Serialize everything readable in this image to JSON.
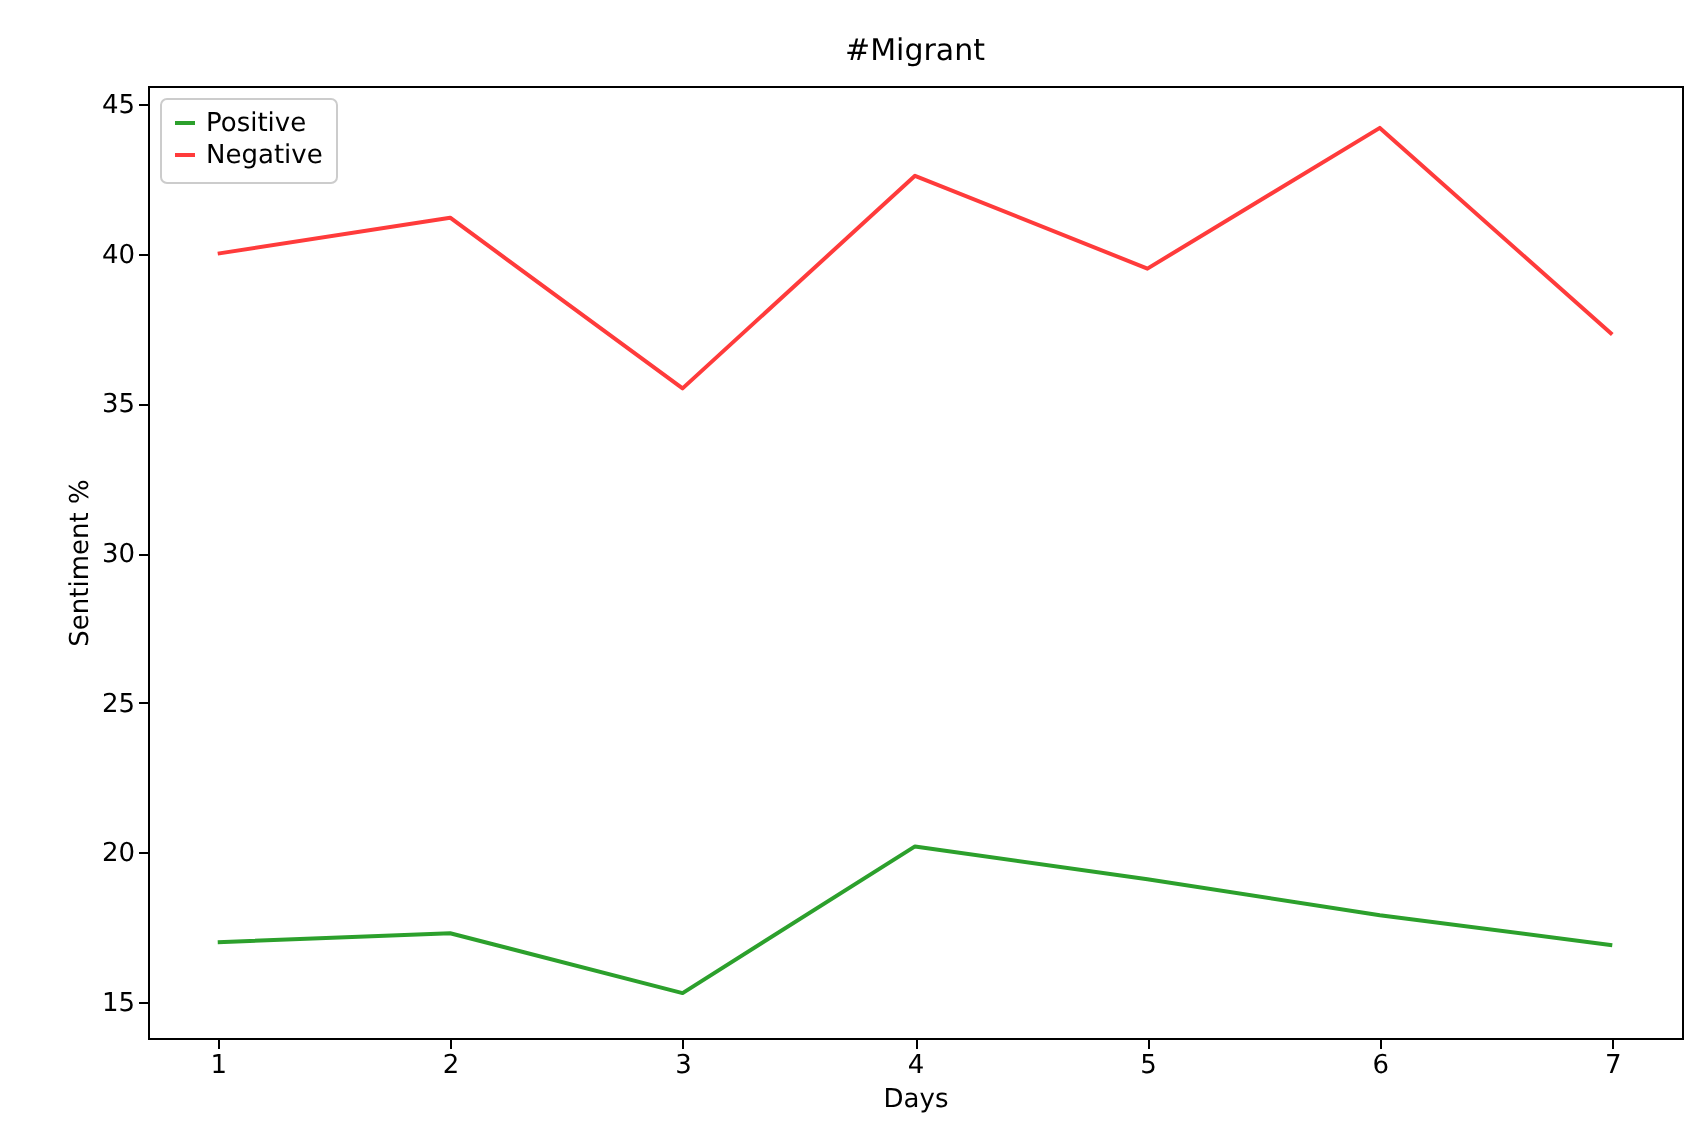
{
  "chart_data": {
    "type": "line",
    "title": "#Migrant",
    "xlabel": "Days",
    "ylabel": "Sentiment %",
    "x": [
      1,
      2,
      3,
      4,
      5,
      6,
      7
    ],
    "series": [
      {
        "name": "Positive",
        "color": "#2ca02c",
        "values": [
          17.0,
          17.3,
          15.3,
          20.2,
          19.1,
          17.9,
          16.9
        ]
      },
      {
        "name": "Negative",
        "color": "#ff3b3b",
        "values": [
          40.0,
          41.2,
          35.5,
          42.6,
          39.5,
          44.2,
          37.3
        ]
      }
    ],
    "xlim": [
      0.7,
      7.3
    ],
    "ylim": [
      13.8,
      45.6
    ],
    "xticks": [
      1,
      2,
      3,
      4,
      5,
      6,
      7
    ],
    "yticks": [
      15,
      20,
      25,
      30,
      35,
      40,
      45
    ],
    "grid": false,
    "legend": "top left",
    "marker": "none",
    "line_style": "solid"
  }
}
